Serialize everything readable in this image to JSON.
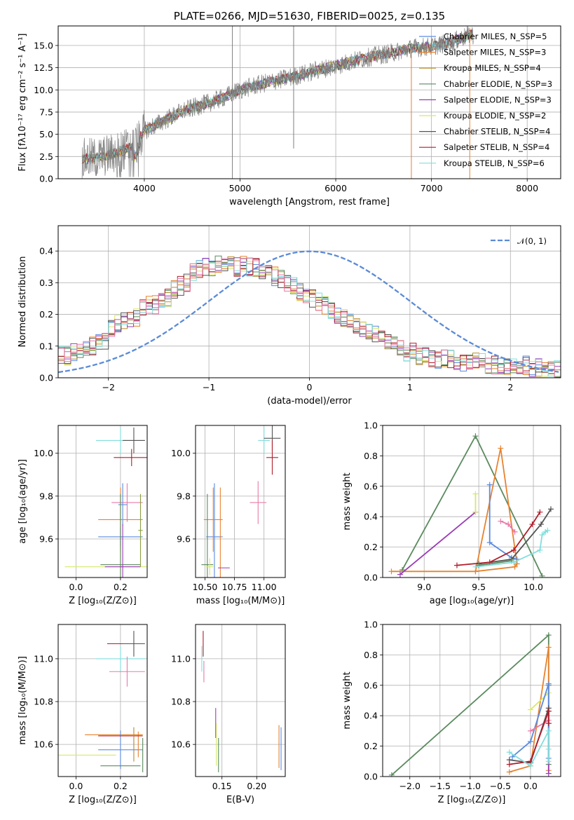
{
  "colors": {
    "chabrier_miles": "#5b8be0",
    "salpeter_miles": "#e8822e",
    "kroupa_miles": "#b58a28",
    "chabrier_elodie": "#5a8a5e",
    "salpeter_elodie": "#9a3cb5",
    "kroupa_elodie": "#d8e868",
    "chabrier_stelib": "#545454",
    "salpeter_stelib": "#b01e2a",
    "kroupa_stelib": "#82dede",
    "pink": "#e87aa8",
    "olive": "#8aa040",
    "gaussian": "#5b8bd6",
    "grid": "#b0b0b0",
    "spectrum_gray": "#808080"
  },
  "chart_data": [
    {
      "id": "spectrum",
      "type": "line",
      "title": "PLATE=0266, MJD=51630, FIBERID=0025, z=0.135",
      "xlabel": "wavelength [Angstrom, rest frame]",
      "ylabel": "Flux [fλ10⁻¹⁷ erg cm⁻² s⁻¹ A⁻¹]",
      "xlim": [
        3100,
        8350
      ],
      "ylim": [
        0,
        17.2
      ],
      "xticks": [
        "4000",
        "5000",
        "6000",
        "7000",
        "8000"
      ],
      "yticks": [
        "0.0",
        "2.5",
        "5.0",
        "7.5",
        "10.0",
        "12.5",
        "15.0"
      ],
      "grid": true,
      "legend_position": "right",
      "legend": [
        "Chabrier MILES, N_SSP=5",
        "Salpeter MILES, N_SSP=3",
        "Kroupa MILES, N_SSP=4",
        "Chabrier ELODIE, N_SSP=3",
        "Salpeter ELODIE, N_SSP=3",
        "Kroupa ELODIE, N_SSP=2",
        "Chabrier STELIB, N_SSP=4",
        "Salpeter STELIB, N_SSP=4",
        "Kroupa STELIB, N_SSP=6"
      ],
      "continuum": {
        "x": [
          3350,
          3500,
          3700,
          3900,
          4000,
          4200,
          4400,
          4600,
          4800,
          5000,
          5200,
          5400,
          5600,
          5800,
          6000,
          6200,
          6400,
          6600,
          6800,
          7000,
          7200,
          7400
        ],
        "y": [
          2.2,
          2.3,
          2.9,
          3.7,
          5.4,
          6.5,
          7.6,
          8.3,
          9.0,
          10.0,
          10.6,
          11.1,
          11.6,
          12.2,
          12.7,
          13.3,
          13.8,
          14.2,
          14.7,
          14.9,
          15.3,
          16.2
        ]
      },
      "spikes": [
        {
          "x": 4920,
          "y0": 0,
          "y1": 17.2
        },
        {
          "x": 5560,
          "y0": 3.4,
          "y1": 17.2
        },
        {
          "x": 6790,
          "y0": 0,
          "y1": 14.5
        },
        {
          "x": 7400,
          "y0": 0,
          "y1": 17.0
        }
      ]
    },
    {
      "id": "residuals",
      "type": "line",
      "xlabel": "(data-model)/error",
      "ylabel": "Normed distribution",
      "xlim": [
        -2.5,
        2.5
      ],
      "ylim": [
        0,
        0.48
      ],
      "xticks": [
        "−2",
        "−1",
        "0",
        "1",
        "2"
      ],
      "yticks": [
        "0.0",
        "0.1",
        "0.2",
        "0.3",
        "0.4"
      ],
      "grid": true,
      "legend_position": "top-right",
      "legend": [
        "𝒩(0, 1)"
      ],
      "bin_width": 0.1,
      "bins_start": -2.5,
      "hist_base": [
        0.07,
        0.07,
        0.08,
        0.08,
        0.09,
        0.1,
        0.11,
        0.12,
        0.16,
        0.17,
        0.18,
        0.18,
        0.19,
        0.22,
        0.23,
        0.23,
        0.24,
        0.25,
        0.28,
        0.29,
        0.3,
        0.33,
        0.34,
        0.35,
        0.35,
        0.36,
        0.35,
        0.36,
        0.35,
        0.36,
        0.35,
        0.35,
        0.34,
        0.33,
        0.32,
        0.31,
        0.3,
        0.29,
        0.27,
        0.26,
        0.25,
        0.24,
        0.23,
        0.21,
        0.2,
        0.19,
        0.18,
        0.17,
        0.16,
        0.15,
        0.14,
        0.12,
        0.11,
        0.1,
        0.09,
        0.08,
        0.08,
        0.07,
        0.07,
        0.06,
        0.06,
        0.06,
        0.06,
        0.05,
        0.05,
        0.05,
        0.05,
        0.05,
        0.04,
        0.04,
        0.04,
        0.04,
        0.04,
        0.04,
        0.04,
        0.03,
        0.03,
        0.03,
        0.03,
        0.03
      ]
    },
    {
      "id": "age-vs-z",
      "type": "scatter",
      "xlabel": "Z [log₁₀(Z/Z⊙)]",
      "ylabel": "age  [log₁₀(age/yr)]",
      "xlim": [
        -0.08,
        0.32
      ],
      "ylim": [
        9.42,
        10.13
      ],
      "xticks": [
        "0.0",
        "0.2"
      ],
      "yticks": [
        "9.6",
        "9.8",
        "10.0"
      ],
      "grid": true,
      "points": [
        {
          "c": "kroupa_stelib",
          "x": 0.2,
          "y": 10.06,
          "xerr": 0.11,
          "yerr": 0.06
        },
        {
          "c": "chabrier_stelib",
          "x": 0.26,
          "y": 10.06,
          "xerr": 0.05,
          "yerr": 0.06
        },
        {
          "c": "salpeter_stelib",
          "x": 0.25,
          "y": 9.98,
          "xerr": 0.08,
          "yerr": 0.04
        },
        {
          "c": "pink",
          "x": 0.23,
          "y": 9.77,
          "xerr": 0.07,
          "yerr": 0.09
        },
        {
          "c": "chabrier_miles",
          "x": 0.21,
          "y": 9.76,
          "xerr": 0.02,
          "yerr": 0.1
        },
        {
          "c": "salpeter_miles",
          "x": 0.2,
          "y": 9.69,
          "xerr": 0.1,
          "yerr": 0.15
        },
        {
          "c": "chabrier_miles",
          "x": 0.2,
          "y": 9.61,
          "xerr": 0.1,
          "yerr": 0.04
        },
        {
          "c": "kroupa_elodie",
          "x": 0.2,
          "y": 9.47,
          "xerr": 0.25,
          "yerr": 0.08
        },
        {
          "c": "chabrier_elodie",
          "x": 0.2,
          "y": 9.48,
          "xerr": 0.09,
          "yerr": 0.33
        },
        {
          "c": "salpeter_elodie",
          "x": 0.21,
          "y": 9.47,
          "xerr": 0.08,
          "yerr": 0.2
        },
        {
          "c": "olive",
          "x": 0.29,
          "y": 9.64,
          "xerr": 0.01,
          "yerr": 0.17
        }
      ]
    },
    {
      "id": "age-vs-mass",
      "type": "scatter",
      "xlabel": "mass [log₁₀(M/M⊙)]",
      "ylabel": "",
      "xlim": [
        10.42,
        11.18
      ],
      "ylim": [
        9.42,
        10.13
      ],
      "xticks": [
        "10.50",
        "10.75",
        "11.00"
      ],
      "yticks": [
        "9.6",
        "9.8",
        "10.0"
      ],
      "grid": true,
      "points": [
        {
          "c": "kroupa_stelib",
          "x": 11.0,
          "y": 10.06,
          "xerr": 0.05,
          "yerr": 0.06
        },
        {
          "c": "chabrier_stelib",
          "x": 11.07,
          "y": 10.07,
          "xerr": 0.07,
          "yerr": 0.06
        },
        {
          "c": "salpeter_stelib",
          "x": 11.07,
          "y": 9.98,
          "xerr": 0.05,
          "yerr": 0.08
        },
        {
          "c": "pink",
          "x": 10.95,
          "y": 9.77,
          "xerr": 0.07,
          "yerr": 0.1
        },
        {
          "c": "chabrier_miles",
          "x": 10.58,
          "y": 9.61,
          "xerr": 0.07,
          "yerr": 0.25
        },
        {
          "c": "salpeter_miles",
          "x": 10.57,
          "y": 9.69,
          "xerr": 0.08,
          "yerr": 0.15
        },
        {
          "c": "salpeter_miles",
          "x": 10.63,
          "y": 9.6,
          "xerr": 0.0,
          "yerr": 0.24
        },
        {
          "c": "chabrier_elodie",
          "x": 10.52,
          "y": 9.48,
          "xerr": 0.05,
          "yerr": 0.33
        },
        {
          "c": "kroupa_elodie",
          "x": 10.54,
          "y": 9.47,
          "xerr": 0.03,
          "yerr": 0.04
        },
        {
          "c": "salpeter_elodie",
          "x": 10.66,
          "y": 9.465,
          "xerr": 0.05,
          "yerr": 0.0
        }
      ]
    },
    {
      "id": "weight-vs-age",
      "type": "line",
      "xlabel": "age  [log₁₀(age/yr)]",
      "ylabel": "mass weight",
      "xlim": [
        8.62,
        10.25
      ],
      "ylim": [
        0,
        1.0
      ],
      "xticks": [
        "9.0",
        "9.5",
        "10.0"
      ],
      "yticks": [
        "0.0",
        "0.2",
        "0.4",
        "0.6",
        "0.8",
        "1.0"
      ],
      "grid": true,
      "series": [
        {
          "c": "chabrier_elodie",
          "x": [
            8.8,
            9.47,
            10.08
          ],
          "y": [
            0.05,
            0.93,
            0.01
          ]
        },
        {
          "c": "salpeter_miles",
          "x": [
            8.7,
            9.47,
            9.7,
            9.85,
            9.83,
            9.47
          ],
          "y": [
            0.04,
            0.04,
            0.85,
            0.09,
            0.07,
            0.04
          ]
        },
        {
          "c": "salpeter_elodie",
          "x": [
            8.78,
            9.47
          ],
          "y": [
            0.02,
            0.43
          ]
        },
        {
          "c": "kroupa_elodie",
          "x": [
            9.47,
            9.47
          ],
          "y": [
            0.55,
            0.43
          ]
        },
        {
          "c": "chabrier_miles",
          "x": [
            9.6,
            9.6,
            9.8,
            9.85
          ],
          "y": [
            0.61,
            0.23,
            0.13,
            0.12
          ]
        },
        {
          "c": "chabrier_stelib",
          "x": [
            9.5,
            9.8,
            10.07,
            10.16
          ],
          "y": [
            0.09,
            0.12,
            0.35,
            0.45
          ]
        },
        {
          "c": "salpeter_stelib",
          "x": [
            9.3,
            9.6,
            9.82,
            9.99,
            10.06
          ],
          "y": [
            0.08,
            0.1,
            0.18,
            0.35,
            0.43
          ]
        },
        {
          "c": "pink",
          "x": [
            9.7,
            9.77,
            9.83
          ],
          "y": [
            0.37,
            0.35,
            0.3
          ]
        },
        {
          "c": "chabrier_elodie",
          "x": [
            9.5,
            9.8
          ],
          "y": [
            0.08,
            0.11
          ]
        },
        {
          "c": "kroupa_stelib",
          "x": [
            9.47,
            9.82,
            10.06,
            10.08,
            10.11,
            10.13
          ],
          "y": [
            0.07,
            0.1,
            0.18,
            0.28,
            0.3,
            0.31
          ]
        }
      ]
    },
    {
      "id": "mass-vs-z",
      "type": "scatter",
      "xlabel": "Z [log₁₀(Z/Z⊙)]",
      "ylabel": "mass [log₁₀(M/M⊙)]",
      "xlim": [
        -0.08,
        0.32
      ],
      "ylim": [
        10.45,
        11.16
      ],
      "xticks": [
        "0.0",
        "0.2"
      ],
      "yticks": [
        "10.6",
        "10.8",
        "11.0"
      ],
      "grid": true,
      "points": [
        {
          "c": "salpeter_stelib",
          "x": 0.22,
          "y": 11.07,
          "xerr": 0.08,
          "yerr": 0.0
        },
        {
          "c": "chabrier_stelib",
          "x": 0.26,
          "y": 11.07,
          "xerr": 0.05,
          "yerr": 0.06
        },
        {
          "c": "kroupa_stelib",
          "x": 0.2,
          "y": 11.0,
          "xerr": 0.11,
          "yerr": 0.06
        },
        {
          "c": "pink",
          "x": 0.23,
          "y": 10.94,
          "xerr": 0.08,
          "yerr": 0.07
        },
        {
          "c": "salpeter_miles",
          "x": 0.17,
          "y": 10.645,
          "xerr": 0.13,
          "yerr": 0.0
        },
        {
          "c": "chabrier_miles",
          "x": 0.2,
          "y": 10.575,
          "xerr": 0.1,
          "yerr": 0.09
        },
        {
          "c": "salpeter_miles",
          "x": 0.28,
          "y": 10.6,
          "xerr": 0.0,
          "yerr": 0.06
        },
        {
          "c": "salpeter_stelib",
          "x": 0.2,
          "y": 10.64,
          "xerr": 0.1,
          "yerr": 0.0
        },
        {
          "c": "kroupa_elodie",
          "x": 0.05,
          "y": 10.55,
          "xerr": 0.13,
          "yerr": 0.0
        },
        {
          "c": "chabrier_elodie",
          "x": 0.2,
          "y": 10.5,
          "xerr": 0.09,
          "yerr": 0.0
        },
        {
          "c": "chabrier_elodie",
          "x": 0.3,
          "y": 10.55,
          "xerr": 0.0,
          "yerr": 0.08
        },
        {
          "c": "kroupa_miles",
          "x": 0.26,
          "y": 10.6,
          "xerr": 0.0,
          "yerr": 0.08
        }
      ]
    },
    {
      "id": "mass-vs-ebv",
      "type": "scatter",
      "xlabel": "E(B-V)",
      "ylabel": "",
      "xlim": [
        0.112,
        0.241
      ],
      "ylim": [
        10.45,
        11.16
      ],
      "xticks": [
        "0.15",
        "0.20"
      ],
      "yticks": [
        "10.6",
        "10.8",
        "11.0"
      ],
      "grid": true,
      "points": [
        {
          "c": "salpeter_stelib",
          "x": 0.123,
          "y": 11.07,
          "xerr": 0.0,
          "yerr": 0.06
        },
        {
          "c": "kroupa_stelib",
          "x": 0.121,
          "y": 11.0,
          "xerr": 0.0,
          "yerr": 0.06
        },
        {
          "c": "pink",
          "x": 0.124,
          "y": 10.94,
          "xerr": 0.0,
          "yerr": 0.05
        },
        {
          "c": "salpeter_elodie",
          "x": 0.141,
          "y": 10.7,
          "xerr": 0.0,
          "yerr": 0.07
        },
        {
          "c": "kroupa_elodie",
          "x": 0.142,
          "y": 10.6,
          "xerr": 0.0,
          "yerr": 0.1
        },
        {
          "c": "chabrier_elodie",
          "x": 0.145,
          "y": 10.55,
          "xerr": 0.0,
          "yerr": 0.08
        },
        {
          "c": "salpeter_miles",
          "x": 0.232,
          "y": 10.59,
          "xerr": 0.0,
          "yerr": 0.1
        },
        {
          "c": "chabrier_miles",
          "x": 0.235,
          "y": 10.58,
          "xerr": 0.0,
          "yerr": 0.1
        }
      ]
    },
    {
      "id": "weight-vs-z",
      "type": "line",
      "xlabel": "Z [log₁₀(Z/Z⊙)]",
      "ylabel": "mass weight",
      "xlim": [
        -2.45,
        0.5
      ],
      "ylim": [
        0,
        1.0
      ],
      "xticks": [
        "−2.0",
        "−1.5",
        "−1.0",
        "−0.5",
        "0.0"
      ],
      "yticks": [
        "0.0",
        "0.2",
        "0.4",
        "0.6",
        "0.8",
        "1.0"
      ],
      "grid": true,
      "series": [
        {
          "c": "chabrier_elodie",
          "x": [
            -2.3,
            0.3,
            0.3,
            0.3
          ],
          "y": [
            0.01,
            0.93,
            0.6,
            0.08
          ]
        },
        {
          "c": "salpeter_miles",
          "x": [
            -0.35,
            0.0,
            0.3,
            0.3
          ],
          "y": [
            0.03,
            0.07,
            0.85,
            0.04
          ]
        },
        {
          "c": "kroupa_elodie",
          "x": [
            0.0,
            0.3
          ],
          "y": [
            0.44,
            0.55
          ]
        },
        {
          "c": "salpeter_elodie",
          "x": [
            0.3,
            0.3
          ],
          "y": [
            0.43,
            0.02
          ]
        },
        {
          "c": "chabrier_miles",
          "x": [
            -0.3,
            0.0,
            0.3,
            0.3
          ],
          "y": [
            0.13,
            0.23,
            0.61,
            0.12
          ]
        },
        {
          "c": "pink",
          "x": [
            0.0,
            0.3,
            0.3
          ],
          "y": [
            0.3,
            0.37,
            0.35
          ]
        },
        {
          "c": "chabrier_stelib",
          "x": [
            -0.35,
            0.0,
            0.3,
            0.3
          ],
          "y": [
            0.11,
            0.09,
            0.45,
            0.35
          ]
        },
        {
          "c": "salpeter_stelib",
          "x": [
            -0.35,
            0.0,
            0.3,
            0.3
          ],
          "y": [
            0.08,
            0.1,
            0.43,
            0.35
          ]
        },
        {
          "c": "kroupa_stelib",
          "x": [
            -0.35,
            0.0,
            0.3,
            0.3,
            0.3
          ],
          "y": [
            0.16,
            0.07,
            0.3,
            0.18,
            0.1
          ]
        }
      ]
    }
  ]
}
